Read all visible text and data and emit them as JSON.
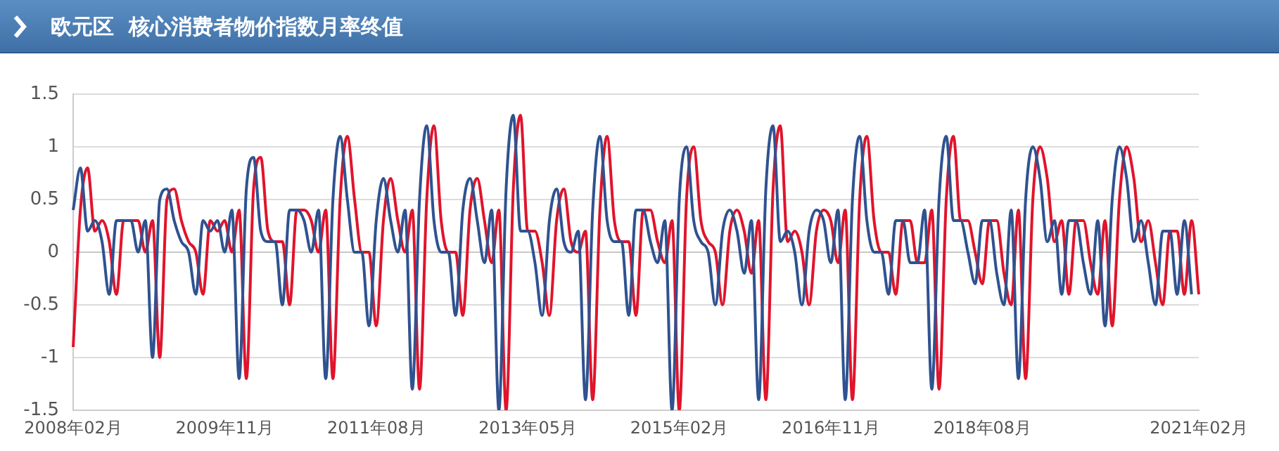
{
  "chart_data": {
    "type": "line",
    "title": "欧元区  核心消费者物价指数月率终值",
    "categories": [
      "2008年02月",
      null,
      null,
      null,
      null,
      null,
      null,
      null,
      null,
      null,
      null,
      null,
      null,
      null,
      null,
      null,
      null,
      null,
      null,
      null,
      null,
      "2009年11月",
      null,
      null,
      null,
      null,
      null,
      null,
      null,
      null,
      null,
      null,
      null,
      null,
      null,
      null,
      null,
      null,
      null,
      null,
      null,
      null,
      "2011年08月",
      null,
      null,
      null,
      null,
      null,
      null,
      null,
      null,
      null,
      null,
      null,
      null,
      null,
      null,
      null,
      null,
      null,
      null,
      null,
      null,
      "2013年05月",
      null,
      null,
      null,
      null,
      null,
      null,
      null,
      null,
      null,
      null,
      null,
      null,
      null,
      null,
      null,
      null,
      null,
      null,
      null,
      null,
      "2015年02月",
      null,
      null,
      null,
      null,
      null,
      null,
      null,
      null,
      null,
      null,
      null,
      null,
      null,
      null,
      null,
      null,
      null,
      null,
      null,
      null,
      "2016年11月",
      null,
      null,
      null,
      null,
      null,
      null,
      null,
      null,
      null,
      null,
      null,
      null,
      null,
      null,
      null,
      null,
      null,
      null,
      null,
      null,
      "2018年08月",
      null,
      null,
      null,
      null,
      null,
      null,
      null,
      null,
      null,
      null,
      null,
      null,
      null,
      null,
      null,
      null,
      null,
      null,
      null,
      null,
      null,
      null,
      null,
      null,
      null,
      null,
      null,
      null,
      null,
      "2021年02月"
    ],
    "series": [
      {
        "color": "#2f5290",
        "values": [
          0.4,
          0.8,
          0.2,
          0.3,
          0.1,
          -0.4,
          0.3,
          0.3,
          0.3,
          0.0,
          0.3,
          -1.0,
          0.5,
          0.6,
          0.3,
          0.1,
          0.0,
          -0.4,
          0.3,
          0.2,
          0.3,
          0.0,
          0.4,
          -1.2,
          0.6,
          0.9,
          0.2,
          0.1,
          0.1,
          -0.5,
          0.4,
          0.4,
          0.3,
          0.0,
          0.4,
          -1.2,
          0.5,
          1.1,
          0.5,
          0.0,
          0.0,
          -0.7,
          0.3,
          0.7,
          0.3,
          0.0,
          0.4,
          -1.3,
          0.5,
          1.2,
          0.3,
          0.0,
          0.0,
          -0.6,
          0.4,
          0.7,
          0.3,
          -0.1,
          0.4,
          -1.5,
          0.6,
          1.3,
          0.2,
          0.2,
          -0.1,
          -0.6,
          0.3,
          0.6,
          0.1,
          0.0,
          0.2,
          -1.4,
          0.4,
          1.1,
          0.3,
          0.1,
          0.1,
          -0.6,
          0.4,
          0.4,
          0.1,
          -0.1,
          0.3,
          -1.5,
          0.5,
          1.0,
          0.3,
          0.1,
          0.0,
          -0.5,
          0.2,
          0.4,
          0.2,
          -0.2,
          0.3,
          -1.4,
          0.6,
          1.2,
          0.1,
          0.2,
          0.0,
          -0.5,
          0.2,
          0.4,
          0.3,
          -0.1,
          0.4,
          -1.4,
          0.5,
          1.1,
          0.3,
          0.0,
          0.0,
          -0.4,
          0.3,
          0.3,
          -0.1,
          -0.1,
          0.4,
          -1.3,
          0.5,
          1.1,
          0.3,
          0.3,
          0.0,
          -0.3,
          0.3,
          0.3,
          -0.2,
          -0.5,
          0.4,
          -1.2,
          0.5,
          1.0,
          0.7,
          0.1,
          0.3,
          -0.4,
          0.3,
          0.3,
          -0.1,
          -0.4,
          0.3,
          -0.7,
          0.5,
          1.0,
          0.7,
          0.1,
          0.3,
          -0.1,
          -0.5,
          0.2,
          0.2,
          -0.4,
          0.3,
          -0.4,
          null
        ]
      },
      {
        "color": "#e0142c",
        "values": [
          -0.9,
          0.4,
          0.8,
          0.2,
          0.3,
          0.1,
          -0.4,
          0.3,
          0.3,
          0.3,
          0.0,
          0.3,
          -1.0,
          0.5,
          0.6,
          0.3,
          0.1,
          0.0,
          -0.4,
          0.3,
          0.2,
          0.3,
          0.0,
          0.4,
          -1.2,
          0.6,
          0.9,
          0.2,
          0.1,
          0.1,
          -0.5,
          0.4,
          0.4,
          0.3,
          0.0,
          0.4,
          -1.2,
          0.5,
          1.1,
          0.5,
          0.0,
          0.0,
          -0.7,
          0.3,
          0.7,
          0.3,
          0.0,
          0.4,
          -1.3,
          0.5,
          1.2,
          0.3,
          0.0,
          0.0,
          -0.6,
          0.4,
          0.7,
          0.3,
          -0.1,
          0.4,
          -1.5,
          0.6,
          1.3,
          0.2,
          0.2,
          -0.1,
          -0.6,
          0.3,
          0.6,
          0.1,
          0.0,
          0.2,
          -1.4,
          0.4,
          1.1,
          0.3,
          0.1,
          0.1,
          -0.6,
          0.4,
          0.4,
          0.1,
          -0.1,
          0.3,
          -1.5,
          0.5,
          1.0,
          0.3,
          0.1,
          0.0,
          -0.5,
          0.2,
          0.4,
          0.2,
          -0.2,
          0.3,
          -1.4,
          0.6,
          1.2,
          0.1,
          0.2,
          0.0,
          -0.5,
          0.2,
          0.4,
          0.3,
          -0.1,
          0.4,
          -1.4,
          0.5,
          1.1,
          0.3,
          0.0,
          0.0,
          -0.4,
          0.3,
          0.3,
          -0.1,
          -0.1,
          0.4,
          -1.3,
          0.5,
          1.1,
          0.3,
          0.3,
          0.0,
          -0.3,
          0.3,
          0.3,
          -0.2,
          -0.5,
          0.4,
          -1.2,
          0.5,
          1.0,
          0.7,
          0.1,
          0.3,
          -0.4,
          0.3,
          0.3,
          -0.1,
          -0.4,
          0.3,
          -0.7,
          0.5,
          1.0,
          0.7,
          0.1,
          0.3,
          -0.1,
          -0.5,
          0.2,
          0.2,
          -0.4,
          0.3,
          -0.4
        ]
      }
    ],
    "ylim": [
      -1.5,
      1.5
    ],
    "yticks": [
      -1.5,
      -1,
      -0.5,
      0,
      0.5,
      1,
      1.5
    ],
    "grid": "y",
    "marker": "none",
    "legend": false
  }
}
